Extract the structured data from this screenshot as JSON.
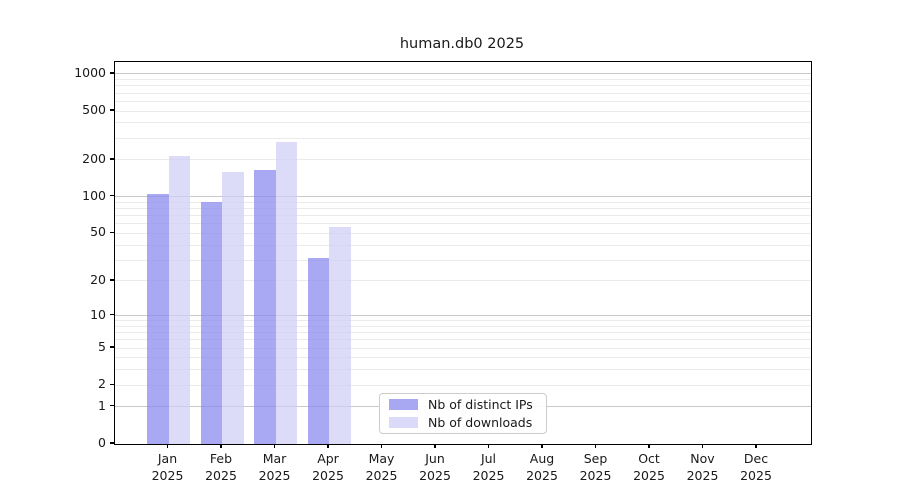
{
  "chart_data": {
    "type": "bar",
    "title": "human.db0 2025",
    "xlabel": "",
    "ylabel": "",
    "categories": [
      "Jan",
      "Feb",
      "Mar",
      "Apr",
      "May",
      "Jun",
      "Jul",
      "Aug",
      "Sep",
      "Oct",
      "Nov",
      "Dec"
    ],
    "x_year_suffix": "2025",
    "series": [
      {
        "name": "Nb of distinct IPs",
        "fill": "rgba(134,134,238,0.72)",
        "legend_color": "#a8a8f2",
        "values": [
          106,
          90,
          165,
          31,
          null,
          null,
          null,
          null,
          null,
          null,
          null,
          null
        ]
      },
      {
        "name": "Nb of downloads",
        "fill": "rgba(206,206,247,0.72)",
        "legend_color": "#dbdbf9",
        "values": [
          215,
          161,
          281,
          56,
          null,
          null,
          null,
          null,
          null,
          null,
          null,
          null
        ]
      }
    ],
    "yscale": "log1p",
    "ylim": [
      0,
      1251
    ],
    "yticks": [
      0,
      1,
      2,
      5,
      10,
      20,
      50,
      100,
      200,
      500,
      1000
    ],
    "ytick_labels": [
      "0",
      "1",
      "2",
      "5",
      "10",
      "20",
      "50",
      "100",
      "200",
      "500",
      "1000"
    ],
    "major_gridlines": [
      1,
      10,
      100,
      1000
    ],
    "minor_gridlines": [
      2,
      3,
      4,
      5,
      6,
      7,
      8,
      9,
      20,
      30,
      40,
      50,
      60,
      70,
      80,
      90,
      200,
      300,
      400,
      500,
      600,
      700,
      800,
      900
    ],
    "grid": "horizontal",
    "legend_position": "inside-bottom-center"
  },
  "colors": {
    "background": "#ffffff",
    "spine": "#000000",
    "grid_major": "#c9c9c9",
    "grid_minor": "#ebebeb",
    "text": "#1a1a1a",
    "legend_border": "#cccccc"
  }
}
